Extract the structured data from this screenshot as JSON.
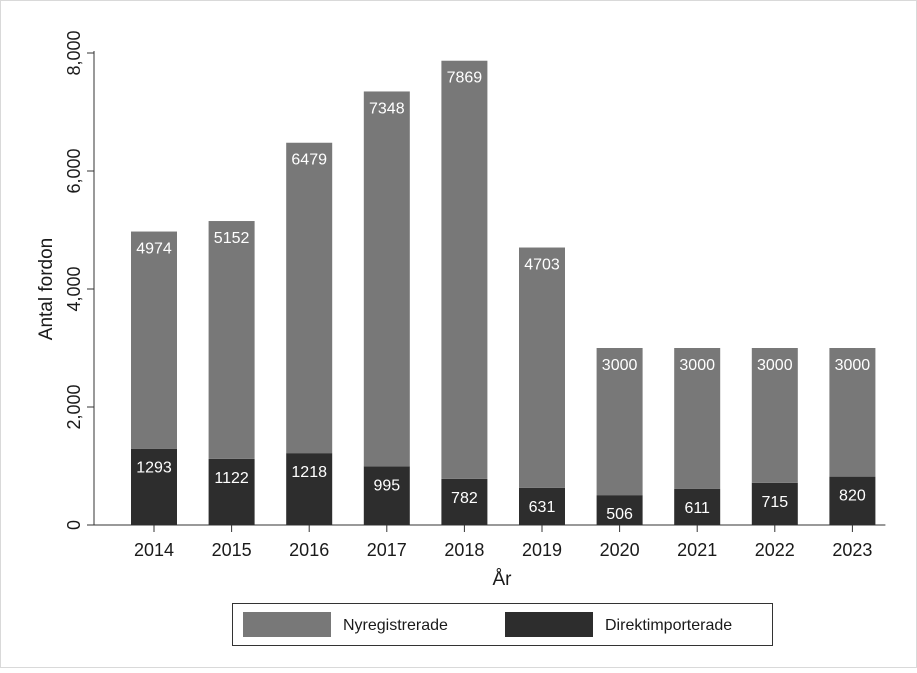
{
  "chart_data": {
    "type": "bar",
    "stacked": true,
    "categories": [
      "2014",
      "2015",
      "2016",
      "2017",
      "2018",
      "2019",
      "2020",
      "2021",
      "2022",
      "2023"
    ],
    "series": [
      {
        "name": "Direktimporterade",
        "color": "#2d2d2d",
        "values": [
          1293,
          1122,
          1218,
          995,
          782,
          631,
          506,
          611,
          715,
          820
        ],
        "labels": [
          "1293",
          "1122",
          "1218",
          "995",
          "782",
          "631",
          "506",
          "611",
          "715",
          "820"
        ]
      },
      {
        "name": "Nyregistrerade",
        "color": "#787878",
        "values": [
          3681,
          4030,
          5261,
          6353,
          7087,
          4072,
          2494,
          2389,
          2285,
          2180
        ],
        "labels": [
          "4974",
          "5152",
          "6479",
          "7348",
          "7869",
          "4703",
          "3000",
          "3000",
          "3000",
          "3000"
        ]
      }
    ],
    "totals": [
      4974,
      5152,
      6479,
      7348,
      7869,
      4703,
      3000,
      3000,
      3000,
      3000
    ],
    "title": "",
    "xlabel": "År",
    "ylabel": "Antal fordon",
    "ylim": [
      0,
      8000
    ],
    "yticks": [
      0,
      2000,
      4000,
      6000,
      8000
    ],
    "ytick_labels": [
      "0",
      "2,000",
      "4,000",
      "6,000",
      "8,000"
    ],
    "grid": false,
    "legend": {
      "position": "bottom",
      "entries": [
        "Nyregistrerade",
        "Direktimporterade"
      ]
    }
  }
}
